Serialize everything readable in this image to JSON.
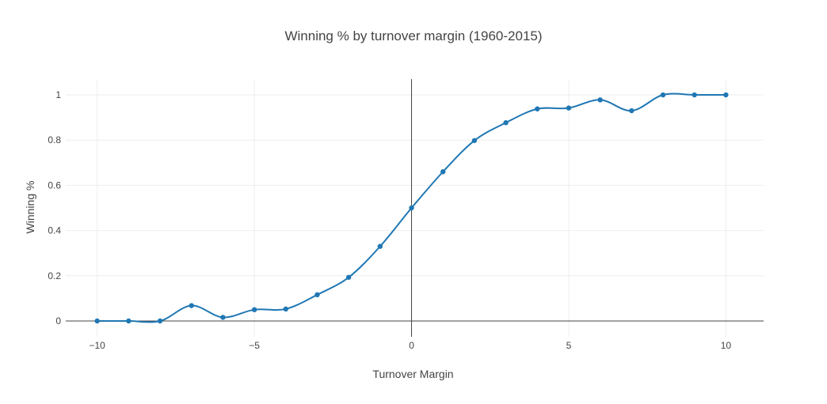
{
  "chart_data": {
    "type": "line",
    "title": "Winning % by turnover margin (1960-2015)",
    "xlabel": "Turnover Margin",
    "ylabel": "Winning %",
    "xlim": [
      -11,
      11.2
    ],
    "ylim": [
      -0.07,
      1.07
    ],
    "x_ticks": [
      -10,
      -5,
      0,
      5,
      10
    ],
    "x_tick_labels": [
      "−10",
      "−5",
      "0",
      "5",
      "10"
    ],
    "y_ticks": [
      0,
      0.2,
      0.4,
      0.6,
      0.8,
      1
    ],
    "y_tick_labels": [
      "0",
      "0.2",
      "0.4",
      "0.6",
      "0.8",
      "1"
    ],
    "grid": true,
    "legend": "none",
    "line_shape": "spline",
    "markers": true,
    "series": [
      {
        "color": "#1f77b4",
        "x": [
          -10,
          -9,
          -8,
          -7,
          -6,
          -5,
          -4,
          -3,
          -2,
          -1,
          0,
          1,
          2,
          3,
          4,
          5,
          6,
          7,
          8,
          9,
          10
        ],
        "y": [
          0,
          0,
          0,
          0.068,
          0.016,
          0.05,
          0.053,
          0.116,
          0.193,
          0.33,
          0.5,
          0.66,
          0.798,
          0.877,
          0.938,
          0.942,
          0.978,
          0.93,
          1,
          1,
          1
        ]
      }
    ]
  }
}
